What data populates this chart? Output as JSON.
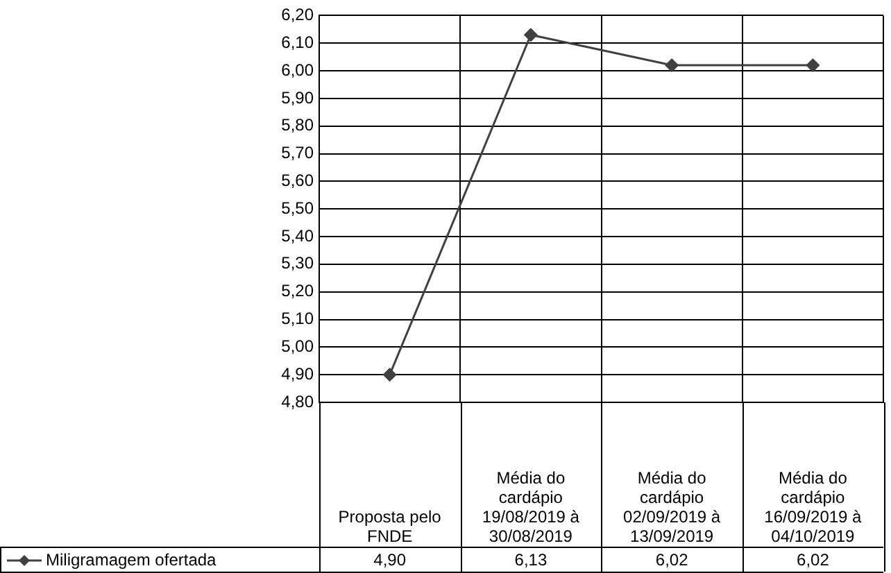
{
  "chart_data": {
    "type": "line",
    "categories": [
      "Proposta pelo FNDE",
      "Média do cardápio 19/08/2019 à 30/08/2019",
      "Média do cardápio 02/09/2019 à 13/09/2019",
      "Média do cardápio 16/09/2019 à 04/10/2019"
    ],
    "series": [
      {
        "name": "Miligramagem ofertada",
        "color": "#404040",
        "values": [
          4.9,
          6.13,
          6.02,
          6.02
        ],
        "value_labels": [
          "4,90",
          "6,13",
          "6,02",
          "6,02"
        ]
      }
    ],
    "ylim": [
      4.8,
      6.2
    ],
    "yticks": [
      {
        "value": 4.8,
        "label": "4,80"
      },
      {
        "value": 4.9,
        "label": "4,90"
      },
      {
        "value": 5.0,
        "label": "5,00"
      },
      {
        "value": 5.1,
        "label": "5,10"
      },
      {
        "value": 5.2,
        "label": "5,20"
      },
      {
        "value": 5.3,
        "label": "5,30"
      },
      {
        "value": 5.4,
        "label": "5,40"
      },
      {
        "value": 5.5,
        "label": "5,50"
      },
      {
        "value": 5.6,
        "label": "5,60"
      },
      {
        "value": 5.7,
        "label": "5,70"
      },
      {
        "value": 5.8,
        "label": "5,80"
      },
      {
        "value": 5.9,
        "label": "5,90"
      },
      {
        "value": 6.0,
        "label": "6,00"
      },
      {
        "value": 6.1,
        "label": "6,10"
      },
      {
        "value": 6.2,
        "label": "6,20"
      }
    ],
    "grid": true,
    "legend": "bottom left",
    "marker": "diamond",
    "line_style": "solid"
  }
}
